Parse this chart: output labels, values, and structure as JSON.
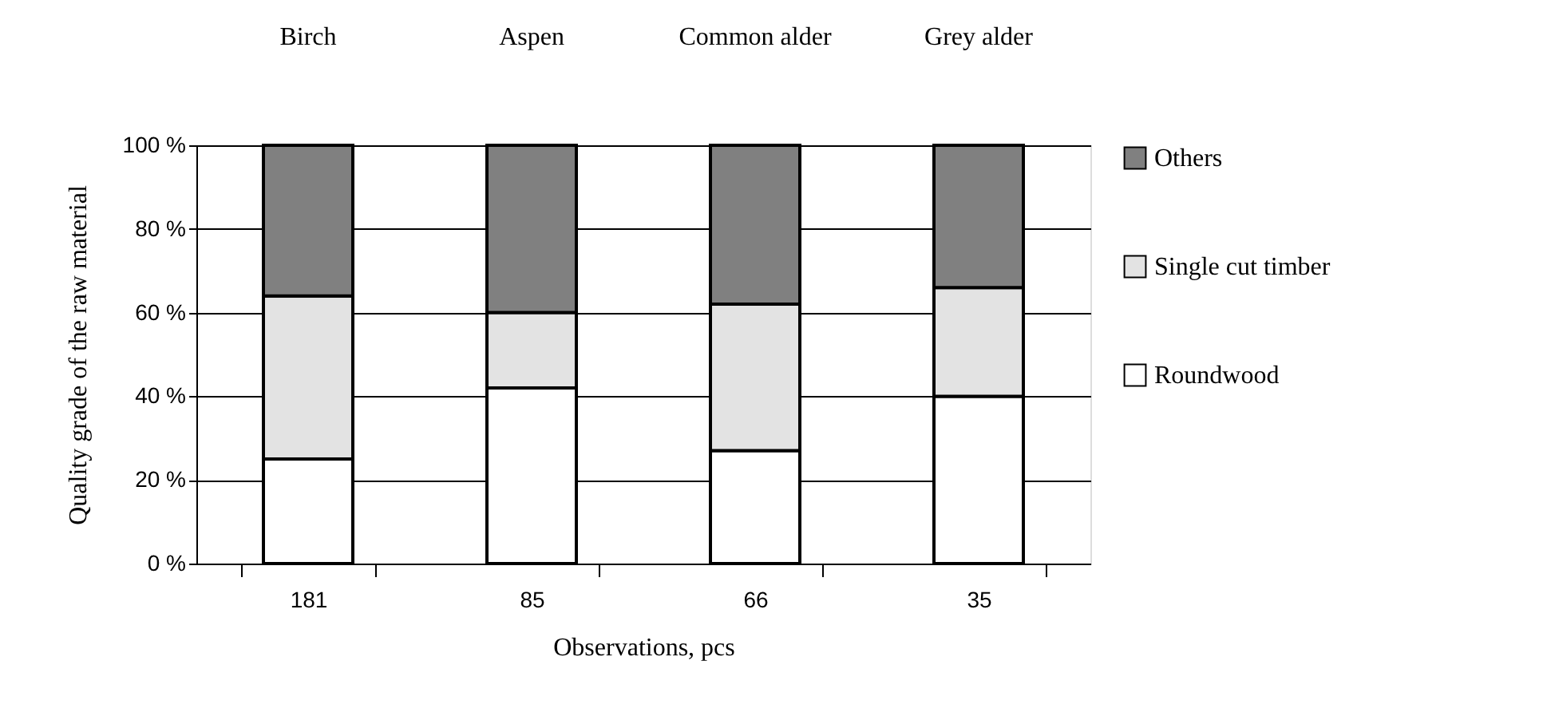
{
  "chart_data": {
    "type": "bar",
    "stacked": true,
    "xlabel": "Observations, pcs",
    "ylabel": "Quality grade of the raw material",
    "categories": [
      "181",
      "85",
      "66",
      "35"
    ],
    "series": [
      {
        "name": "Roundwood",
        "color": "#ffffff",
        "values": [
          25,
          42,
          27,
          40
        ]
      },
      {
        "name": "Single cut timber",
        "color": "#e3e3e3",
        "values": [
          39,
          18,
          35,
          26
        ]
      },
      {
        "name": "Others",
        "color": "#808080",
        "values": [
          36,
          40,
          38,
          34
        ]
      }
    ],
    "ylim": [
      0,
      100
    ],
    "yticks": [
      {
        "value": 0,
        "label": "0 %"
      },
      {
        "value": 20,
        "label": "20 %"
      },
      {
        "value": 40,
        "label": "40 %"
      },
      {
        "value": 60,
        "label": "60 %"
      },
      {
        "value": 80,
        "label": "80 %"
      },
      {
        "value": 100,
        "label": "100 %"
      }
    ],
    "annotations": [
      "Birch",
      "Aspen",
      "Common alder",
      "Grey alder"
    ],
    "grid": "y",
    "legend": "right"
  }
}
